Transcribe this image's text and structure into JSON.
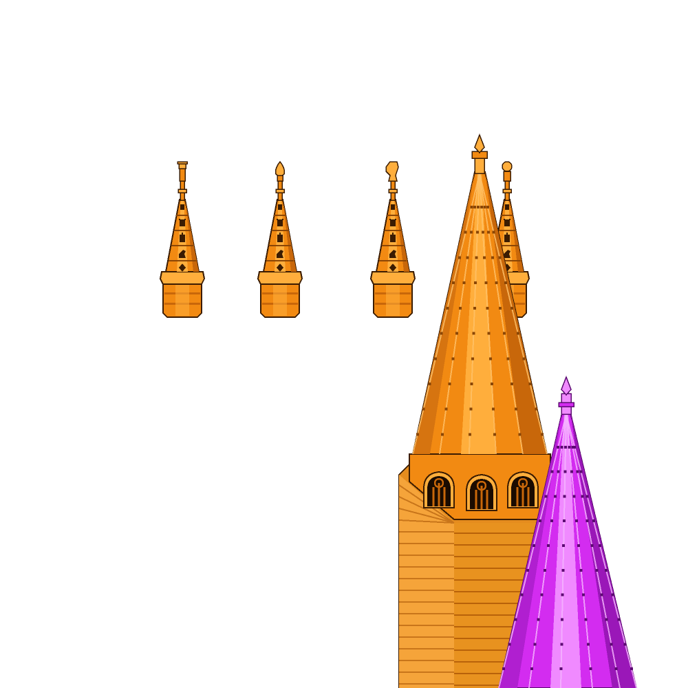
{
  "scene": {
    "background": "#ffffff",
    "palette": {
      "orange_light": "#ffae3c",
      "orange_mid": "#f28a12",
      "orange_dark": "#c8670a",
      "orange_deep": "#8a4606",
      "outline": "#3b1c02",
      "purple_light": "#f08aff",
      "purple_mid": "#d32cf0",
      "purple_dark": "#9a17b8",
      "purple_deep": "#5c0a72"
    },
    "small_spires": [
      {
        "finial": "king-finial-icon"
      },
      {
        "finial": "bishop-finial-icon"
      },
      {
        "finial": "knight-finial-icon"
      },
      {
        "finial": "pawn-finial-icon"
      }
    ],
    "spire_emblems": [
      "rook-icon",
      "rook-icon",
      "bishop-icon",
      "knight-icon",
      "diamond-icon"
    ],
    "large_tower": {
      "color": "orange",
      "window_count": 3,
      "window_icon": "gothic-window-icon"
    },
    "purple_spire": {
      "color": "purple"
    }
  }
}
